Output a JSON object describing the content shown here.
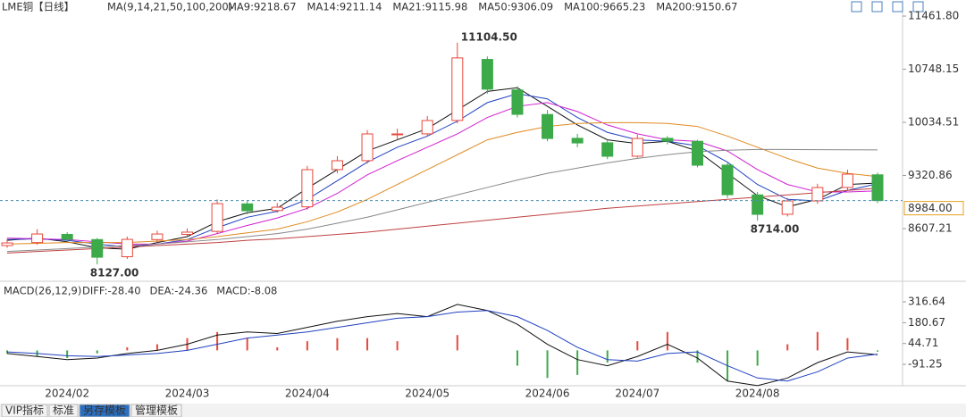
{
  "chart_data": {
    "type": "candlestick",
    "title": "LME铜【日线】",
    "ma_label": "MA(9,14,21,50,100,200)",
    "categories": [
      null,
      null,
      "2024/02",
      null,
      null,
      null,
      "2024/03",
      null,
      null,
      null,
      "2024/04",
      null,
      null,
      null,
      "2024/05",
      null,
      null,
      null,
      "2024/06",
      null,
      null,
      "2024/07",
      null,
      null,
      null,
      "2024/08",
      null,
      null,
      null,
      null
    ],
    "candles": {
      "up_color": "#e8483c",
      "down_color": "#3daa4a",
      "open": [
        8380,
        8420,
        8530,
        8460,
        8230,
        8460,
        8530,
        8570,
        8940,
        8850,
        8900,
        9400,
        9520,
        9870,
        9880,
        10060,
        10880,
        10470,
        10140,
        9820,
        9760,
        9580,
        9820,
        9780,
        9460,
        9060,
        8800,
        8980,
        9160,
        9330
      ],
      "high": [
        8470,
        8600,
        8560,
        8480,
        8500,
        8580,
        8610,
        9000,
        8990,
        8950,
        9450,
        9580,
        9930,
        9950,
        10120,
        11104.5,
        10920,
        10520,
        10200,
        9880,
        9800,
        9870,
        9850,
        9800,
        9500,
        9100,
        9020,
        9210,
        9400,
        9360
      ],
      "low": [
        8350,
        8390,
        8440,
        8127,
        8200,
        8420,
        8500,
        8540,
        8800,
        8820,
        8860,
        9350,
        9480,
        9800,
        9840,
        10020,
        10420,
        10100,
        9780,
        9700,
        9540,
        9560,
        9740,
        9430,
        9020,
        8714,
        8770,
        8940,
        9120,
        8950
      ],
      "close": [
        8415,
        8535,
        8463,
        8223,
        8463,
        8535,
        8560,
        8943,
        8847,
        8895,
        9399,
        9519,
        9879,
        9879,
        10059,
        10900,
        10480,
        10142,
        9818,
        9758,
        9579,
        9818,
        9782,
        9459,
        9063,
        8799,
        8979,
        9159,
        9339,
        8984
      ],
      "high_labels": [
        null,
        null,
        null,
        null,
        null,
        null,
        null,
        null,
        null,
        null,
        null,
        null,
        null,
        null,
        null,
        "11104.50",
        null,
        null,
        null,
        null,
        null,
        null,
        null,
        null,
        null,
        null,
        null,
        null,
        null,
        null
      ],
      "low_labels": [
        null,
        null,
        null,
        "8127.00",
        null,
        null,
        null,
        null,
        null,
        null,
        null,
        null,
        null,
        null,
        null,
        null,
        null,
        null,
        null,
        null,
        null,
        null,
        null,
        null,
        null,
        "8714.00",
        null,
        null,
        null,
        null
      ]
    },
    "series": [
      {
        "name": "MA9:9218.67",
        "color": "#111111",
        "values": [
          8450,
          8480,
          8430,
          8350,
          8330,
          8420,
          8500,
          8700,
          8820,
          8880,
          9150,
          9400,
          9650,
          9800,
          9950,
          10200,
          10450,
          10500,
          10250,
          10000,
          9800,
          9750,
          9780,
          9650,
          9350,
          9050,
          8900,
          9000,
          9200,
          9220
        ]
      },
      {
        "name": "MA14:9211.14",
        "color": "#2040c0",
        "values": [
          8460,
          8470,
          8450,
          8400,
          8360,
          8400,
          8460,
          8620,
          8760,
          8840,
          9000,
          9250,
          9500,
          9700,
          9850,
          10050,
          10300,
          10420,
          10350,
          10100,
          9900,
          9800,
          9780,
          9720,
          9500,
          9200,
          9000,
          8980,
          9120,
          9210
        ]
      },
      {
        "name": "MA21:9115.98",
        "color": "#d020d0",
        "values": [
          8480,
          8470,
          8460,
          8430,
          8400,
          8400,
          8440,
          8540,
          8650,
          8750,
          8880,
          9080,
          9330,
          9520,
          9700,
          9880,
          10100,
          10250,
          10300,
          10180,
          10000,
          9880,
          9800,
          9780,
          9650,
          9400,
          9200,
          9100,
          9100,
          9115
        ]
      },
      {
        "name": "MA50:9306.09",
        "color": "#e08a20",
        "values": [
          8400,
          8410,
          8420,
          8420,
          8420,
          8440,
          8460,
          8500,
          8550,
          8600,
          8700,
          8830,
          9000,
          9200,
          9400,
          9600,
          9800,
          9900,
          9980,
          10020,
          10030,
          10030,
          10020,
          9980,
          9850,
          9700,
          9550,
          9420,
          9350,
          9306
        ]
      },
      {
        "name": "MA100:9665.23",
        "color": "#888888",
        "values": [
          8300,
          8320,
          8340,
          8360,
          8380,
          8400,
          8430,
          8460,
          8500,
          8540,
          8600,
          8680,
          8760,
          8860,
          8960,
          9060,
          9160,
          9260,
          9350,
          9420,
          9490,
          9550,
          9600,
          9640,
          9660,
          9670,
          9670,
          9668,
          9666,
          9665
        ]
      },
      {
        "name": "MA200:9150.67",
        "color": "#c04040",
        "values": [
          8280,
          8300,
          8320,
          8340,
          8360,
          8380,
          8400,
          8420,
          8450,
          8470,
          8500,
          8530,
          8560,
          8600,
          8640,
          8680,
          8720,
          8760,
          8800,
          8840,
          8880,
          8910,
          8940,
          8970,
          9000,
          9030,
          9060,
          9090,
          9120,
          9150
        ]
      }
    ],
    "ylim": [
      7960,
      11618
    ],
    "yticks": [
      {
        "value": 11461.8,
        "label": "11461.80"
      },
      {
        "value": 10748.15,
        "label": "10748.15"
      },
      {
        "value": 10034.51,
        "label": "10034.51"
      },
      {
        "value": 9320.86,
        "label": "9320.86"
      },
      8607.21
    ],
    "last": {
      "value": 8984,
      "label": "8984.00",
      "color": "#e8a020"
    },
    "macd": {
      "title": "MACD(26,12,9)",
      "diff": {
        "name": "DIFF:-28.40",
        "color": "#111111",
        "values": [
          -20,
          -40,
          -60,
          -50,
          -20,
          0,
          40,
          100,
          120,
          110,
          150,
          190,
          220,
          240,
          220,
          300,
          260,
          170,
          40,
          -60,
          -100,
          -40,
          40,
          -50,
          -200,
          -230,
          -180,
          -80,
          -10,
          -28.4
        ]
      },
      "dea": {
        "name": "DEA:-24.36",
        "color": "#2040c0",
        "values": [
          -10,
          -20,
          -35,
          -40,
          -30,
          -20,
          0,
          40,
          80,
          100,
          120,
          150,
          180,
          210,
          220,
          250,
          260,
          220,
          130,
          20,
          -60,
          -70,
          -20,
          -10,
          -100,
          -180,
          -200,
          -140,
          -50,
          -24.36
        ]
      },
      "hist": {
        "name": "MACD:-8.08",
        "color": "#d020d0",
        "up_color": "#e8483c",
        "down_color": "#3daa4a",
        "values": [
          -20,
          -40,
          -50,
          -20,
          20,
          40,
          80,
          120,
          80,
          20,
          60,
          80,
          80,
          60,
          0,
          100,
          0,
          -100,
          -180,
          -160,
          -80,
          60,
          120,
          -80,
          -200,
          -100,
          40,
          120,
          80,
          -8.08
        ]
      },
      "ylim": [
        -219,
        410
      ],
      "yticks": [
        316.64,
        180.67,
        44.71,
        -91.25
      ]
    }
  },
  "toolbar": {
    "tabs": [
      "VIP指标",
      "标准",
      "另存模板",
      "管理模板"
    ]
  }
}
